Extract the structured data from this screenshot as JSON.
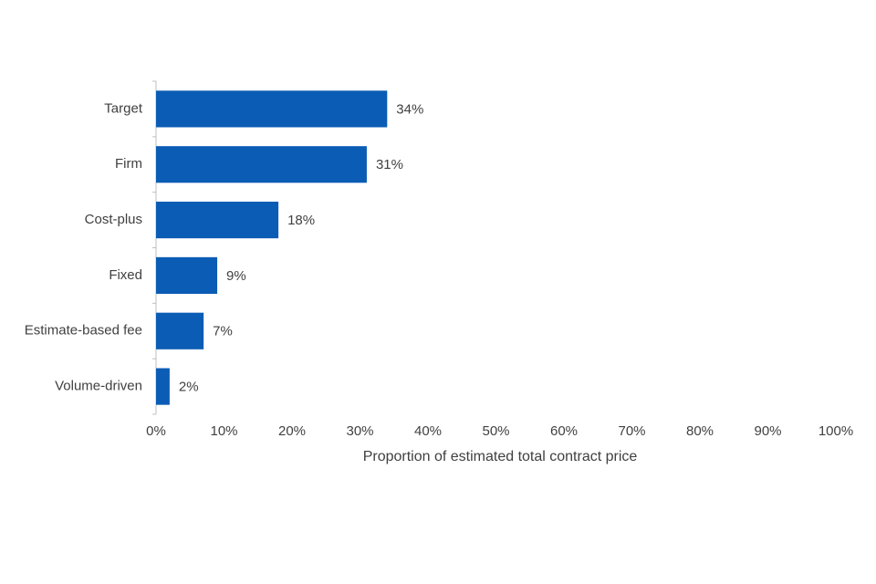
{
  "chart_data": {
    "type": "bar",
    "orientation": "horizontal",
    "x_label": "Proportion of estimated total contract price",
    "categories": [
      "Target",
      "Firm",
      "Cost-plus",
      "Fixed",
      "Estimate-based fee",
      "Volume-driven"
    ],
    "values": [
      34,
      31,
      18,
      9,
      7,
      2
    ],
    "value_labels": [
      "34%",
      "31%",
      "18%",
      "9%",
      "7%",
      "2%"
    ],
    "color": "#0b5cb5",
    "xlim": [
      0,
      100
    ],
    "xticks": [
      {
        "value": 0,
        "label": "0%"
      },
      {
        "value": 10,
        "label": "10%"
      },
      {
        "value": 20,
        "label": "20%"
      },
      {
        "value": 30,
        "label": "30%"
      },
      {
        "value": 40,
        "label": "40%"
      },
      {
        "value": 50,
        "label": "50%"
      },
      {
        "value": 60,
        "label": "60%"
      },
      {
        "value": 70,
        "label": "70%"
      },
      {
        "value": 80,
        "label": "80%"
      },
      {
        "value": 90,
        "label": "90%"
      },
      {
        "value": 100,
        "label": "100%"
      }
    ],
    "grid": false
  }
}
